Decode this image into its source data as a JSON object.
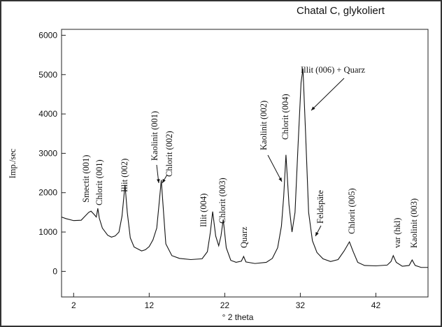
{
  "chart_data": {
    "type": "line",
    "title": "Chatal C, glykoliert",
    "xlabel": "° 2 theta",
    "ylabel": "Imp./sec",
    "color": "#111111",
    "xlim": [
      0.4,
      48.9
    ],
    "ylim": [
      -650,
      6150
    ],
    "xticks": [
      2,
      12,
      22,
      32,
      42
    ],
    "yticks": [
      0,
      1000,
      2000,
      3000,
      4000,
      5000,
      6000
    ],
    "x": [
      0.4,
      1,
      2,
      3,
      3.5,
      4,
      4.3,
      4.7,
      5,
      5.2,
      5.4,
      5.8,
      6.5,
      7,
      7.5,
      8,
      8.4,
      8.8,
      9.1,
      9.5,
      10,
      11,
      11.5,
      12,
      12.5,
      13,
      13.3,
      13.6,
      13.9,
      14.2,
      15,
      16,
      17.5,
      19,
      19.7,
      20.1,
      20.4,
      20.8,
      21.2,
      21.5,
      21.8,
      22.2,
      22.8,
      23.5,
      24.2,
      24.5,
      24.8,
      26,
      27.5,
      28.3,
      29,
      29.5,
      29.8,
      30.1,
      30.5,
      30.9,
      31.3,
      31.7,
      32.1,
      32.35,
      32.7,
      33.1,
      33.6,
      34.2,
      35,
      36,
      37,
      37.8,
      38.5,
      39,
      39.6,
      40.5,
      42,
      43.5,
      44,
      44.3,
      44.7,
      45.5,
      46.4,
      46.8,
      47.2,
      48,
      48.9
    ],
    "values": [
      1380,
      1340,
      1290,
      1300,
      1400,
      1500,
      1530,
      1450,
      1380,
      1600,
      1350,
      1100,
      920,
      870,
      900,
      1000,
      1400,
      2200,
      1500,
      850,
      620,
      520,
      550,
      630,
      800,
      1100,
      1700,
      2320,
      1500,
      700,
      400,
      330,
      300,
      320,
      500,
      1000,
      1520,
      900,
      650,
      900,
      1320,
      600,
      280,
      230,
      260,
      380,
      240,
      200,
      230,
      330,
      600,
      1150,
      1900,
      2960,
      1700,
      1000,
      1500,
      3200,
      4800,
      5150,
      3500,
      1500,
      780,
      480,
      320,
      250,
      300,
      520,
      750,
      500,
      230,
      150,
      140,
      160,
      250,
      400,
      230,
      130,
      150,
      290,
      150,
      100,
      100
    ],
    "annotations": [
      "Smectit (001)",
      "Chlorit (001)",
      "Illit (002)",
      "Kaolinit (001)",
      "Chlorit (002)",
      "Illit (004)",
      "Chlorit (003)",
      "Quarz",
      "Kaolinit (002)",
      "Chlorit (004)",
      "Illit (006) + Quarz",
      "Feldspäte",
      "Chlorit (005)",
      "var (hkl)",
      "Kaolinit (003)"
    ]
  }
}
